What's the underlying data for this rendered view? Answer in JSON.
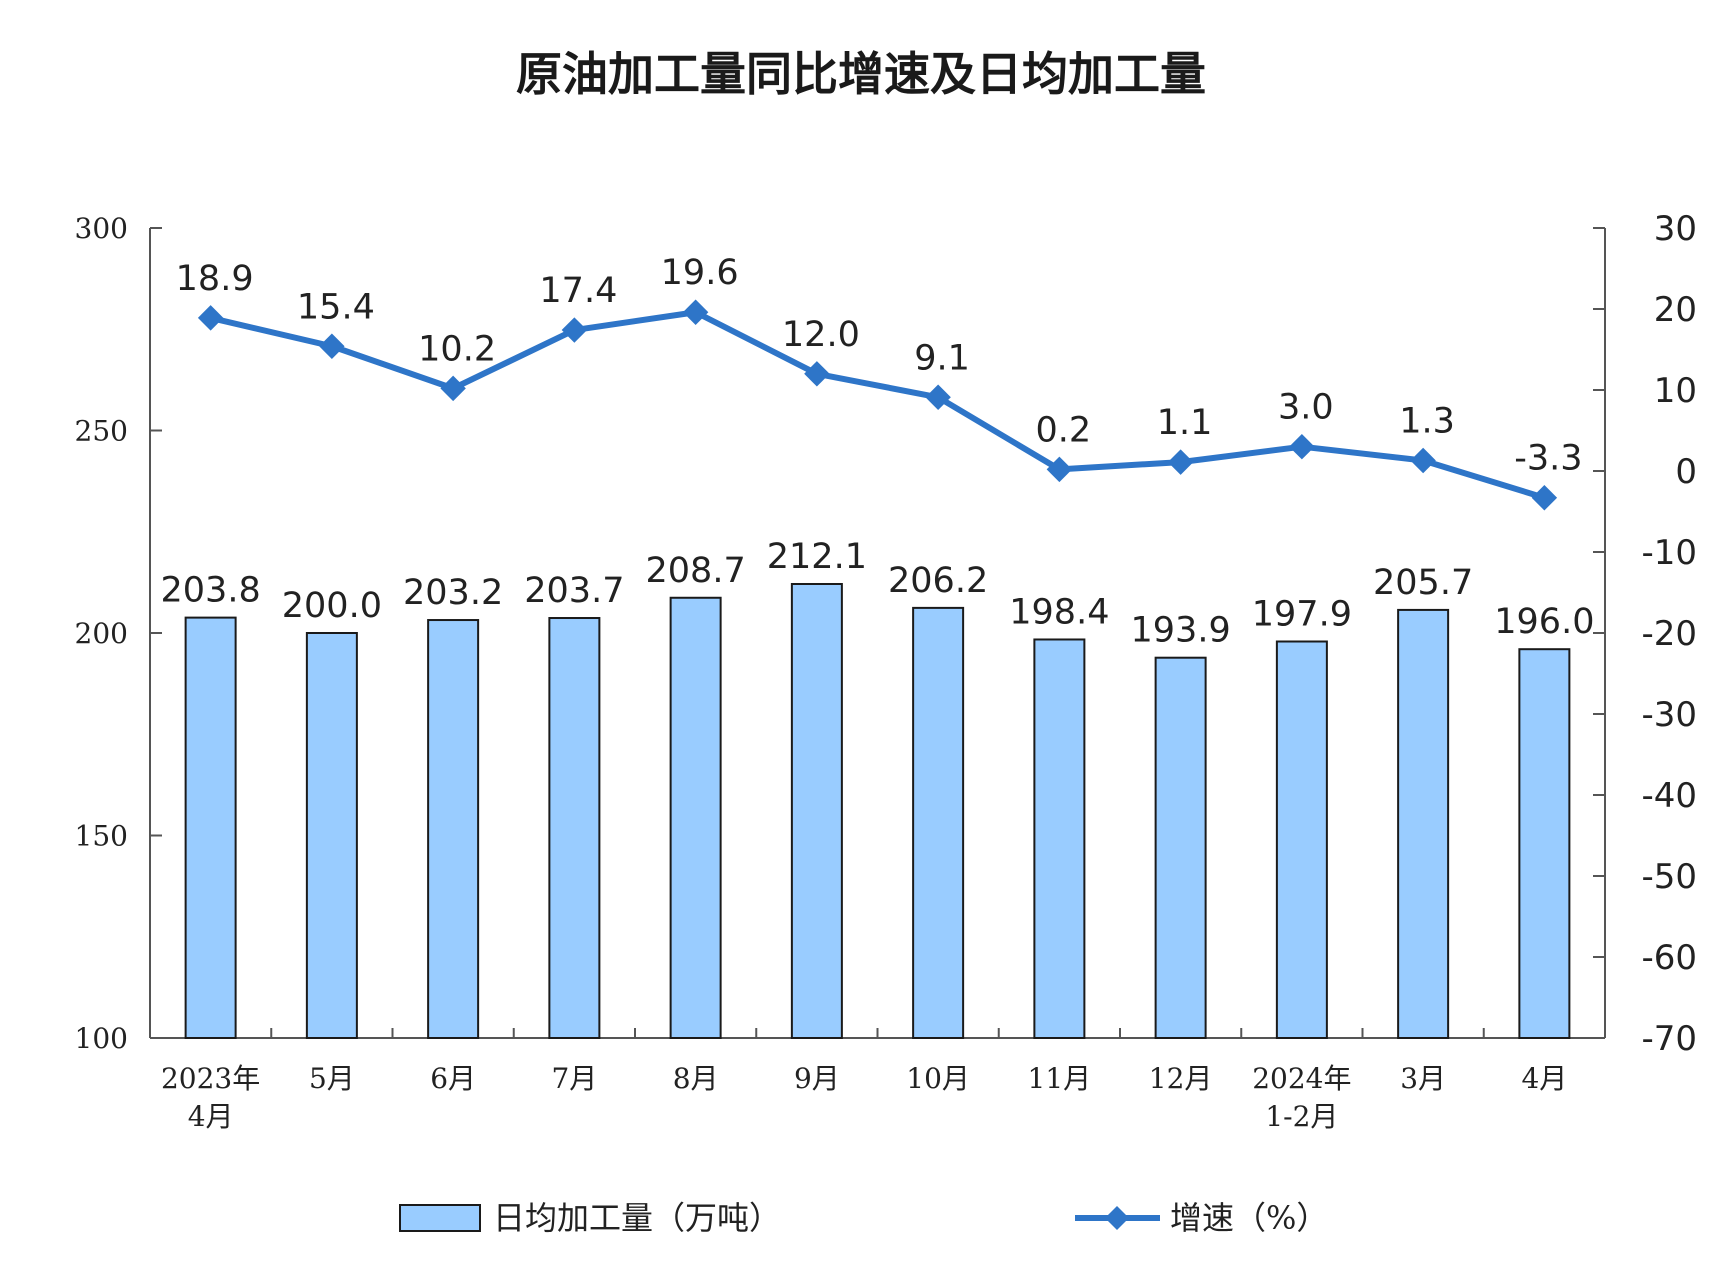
{
  "chart_data": {
    "type": "bar",
    "title": "原油加工量同比增速及日均加工量",
    "categories": [
      [
        "2023年",
        "4月"
      ],
      [
        "5月"
      ],
      [
        "6月"
      ],
      [
        "7月"
      ],
      [
        "8月"
      ],
      [
        "9月"
      ],
      [
        "10月"
      ],
      [
        "11月"
      ],
      [
        "12月"
      ],
      [
        "2024年",
        "1-2月"
      ],
      [
        "3月"
      ],
      [
        "4月"
      ]
    ],
    "series": [
      {
        "name": "日均加工量（万吨）",
        "type": "bar",
        "axis": "left",
        "color": "#99ccff",
        "values": [
          203.8,
          200.0,
          203.2,
          203.7,
          208.7,
          212.1,
          206.2,
          198.4,
          193.9,
          197.9,
          205.7,
          196.0
        ],
        "labels": [
          "203.8",
          "200.0",
          "203.2",
          "203.7",
          "208.7",
          "212.1",
          "206.2",
          "198.4",
          "193.9",
          "197.9",
          "205.7",
          "196.0"
        ]
      },
      {
        "name": "增速（%）",
        "type": "line",
        "axis": "right",
        "color": "#2e75c8",
        "values": [
          18.9,
          15.4,
          10.2,
          17.4,
          19.6,
          12.0,
          9.1,
          0.2,
          1.1,
          3.0,
          1.3,
          -3.3
        ],
        "labels": [
          "18.9",
          "15.4",
          "10.2",
          "17.4",
          "19.6",
          "12.0",
          "9.1",
          "0.2",
          "1.1",
          "3.0",
          "1.3",
          "-3.3"
        ]
      }
    ],
    "y_left": {
      "ylim": [
        100,
        300
      ],
      "ticks": [
        "100",
        "150",
        "200",
        "250",
        "300"
      ]
    },
    "y_right": {
      "ylim": [
        -70,
        30
      ],
      "ticks": [
        "-70",
        "-60",
        "-50",
        "-40",
        "-30",
        "-20",
        "-10",
        "0",
        "10",
        "20",
        "30"
      ]
    },
    "grid": false,
    "legend_position": "bottom"
  }
}
